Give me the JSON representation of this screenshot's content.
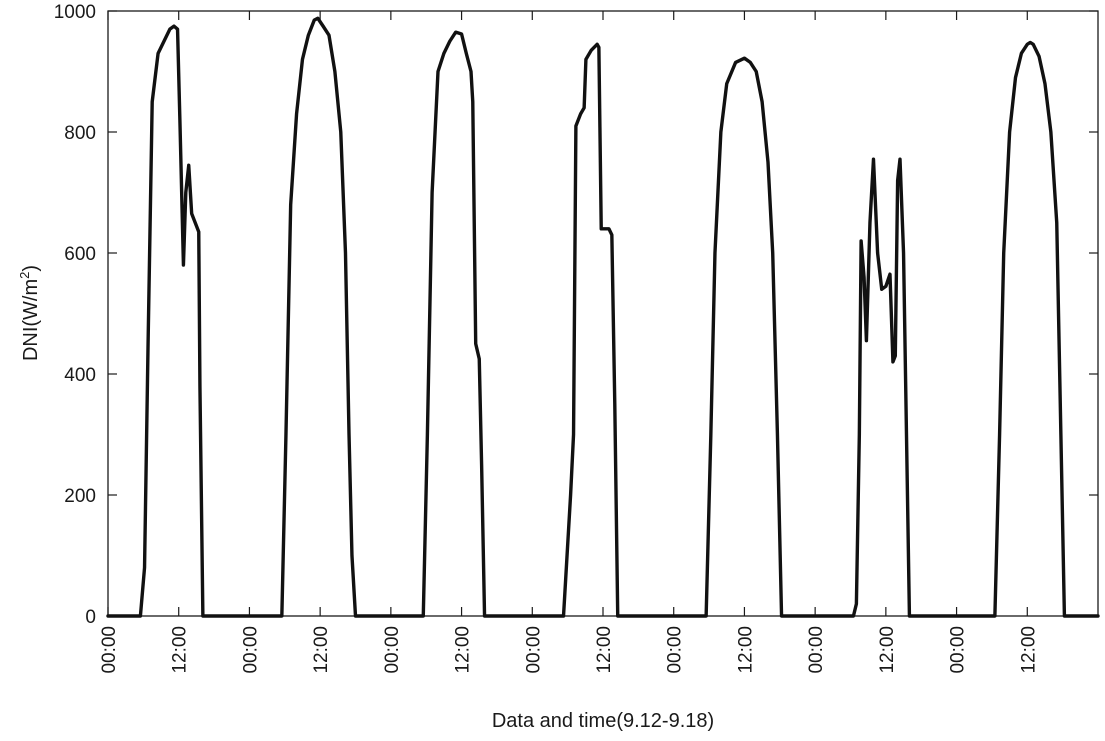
{
  "chart_data": {
    "type": "line",
    "xlabel": "Data and time(9.12-9.18)",
    "ylabel": "DNI(W/m",
    "ylabel_sup": "2",
    "ylabel_close": ")",
    "ylim": [
      0,
      1000
    ],
    "y_ticks": [
      0,
      200,
      400,
      600,
      800,
      1000
    ],
    "xlim_hours": [
      0,
      168
    ],
    "x_ticks": [
      {
        "hour": 0,
        "label": "00:00"
      },
      {
        "hour": 12,
        "label": "12:00"
      },
      {
        "hour": 24,
        "label": "00:00"
      },
      {
        "hour": 36,
        "label": "12:00"
      },
      {
        "hour": 48,
        "label": "00:00"
      },
      {
        "hour": 60,
        "label": "12:00"
      },
      {
        "hour": 72,
        "label": "00:00"
      },
      {
        "hour": 84,
        "label": "12:00"
      },
      {
        "hour": 96,
        "label": "00:00"
      },
      {
        "hour": 108,
        "label": "12:00"
      },
      {
        "hour": 120,
        "label": "00:00"
      },
      {
        "hour": 132,
        "label": "12:00"
      },
      {
        "hour": 144,
        "label": "00:00"
      },
      {
        "hour": 156,
        "label": "12:00"
      }
    ],
    "grid": false,
    "line_color": "#111111",
    "series": [
      {
        "points": [
          [
            0,
            0
          ],
          [
            4.5,
            0
          ],
          [
            5.5,
            0
          ],
          [
            6.2,
            80
          ],
          [
            6.8,
            450
          ],
          [
            7.5,
            850
          ],
          [
            8.5,
            930
          ],
          [
            9.5,
            950
          ],
          [
            10.5,
            970
          ],
          [
            11.2,
            975
          ],
          [
            11.8,
            970
          ],
          [
            12.2,
            820
          ],
          [
            12.8,
            580
          ],
          [
            13.2,
            700
          ],
          [
            13.7,
            745
          ],
          [
            14.2,
            665
          ],
          [
            15,
            645
          ],
          [
            15.4,
            635
          ],
          [
            15.6,
            380
          ],
          [
            16.1,
            0
          ],
          [
            29.5,
            0
          ],
          [
            30.2,
            300
          ],
          [
            31,
            680
          ],
          [
            32,
            830
          ],
          [
            33,
            920
          ],
          [
            34,
            960
          ],
          [
            35,
            985
          ],
          [
            35.6,
            988
          ],
          [
            36.5,
            975
          ],
          [
            37.5,
            960
          ],
          [
            38.5,
            900
          ],
          [
            39.5,
            800
          ],
          [
            40.3,
            600
          ],
          [
            40.9,
            300
          ],
          [
            41.4,
            100
          ],
          [
            42,
            0
          ],
          [
            53.5,
            0
          ],
          [
            54.2,
            300
          ],
          [
            55,
            700
          ],
          [
            56,
            900
          ],
          [
            57,
            930
          ],
          [
            58,
            950
          ],
          [
            59,
            965
          ],
          [
            60,
            962
          ],
          [
            60.8,
            930
          ],
          [
            61.6,
            900
          ],
          [
            61.9,
            850
          ],
          [
            62.4,
            450
          ],
          [
            63,
            425
          ],
          [
            63.4,
            250
          ],
          [
            63.9,
            0
          ],
          [
            77.3,
            0
          ],
          [
            77.9,
            100
          ],
          [
            78.5,
            200
          ],
          [
            79,
            300
          ],
          [
            79.4,
            810
          ],
          [
            80.2,
            830
          ],
          [
            80.8,
            840
          ],
          [
            81.1,
            920
          ],
          [
            82,
            935
          ],
          [
            83,
            945
          ],
          [
            83.3,
            940
          ],
          [
            83.7,
            640
          ],
          [
            85,
            640
          ],
          [
            85.5,
            630
          ],
          [
            86,
            350
          ],
          [
            86.5,
            0
          ],
          [
            101.5,
            0
          ],
          [
            102.3,
            300
          ],
          [
            103,
            600
          ],
          [
            104,
            800
          ],
          [
            105,
            880
          ],
          [
            106.5,
            915
          ],
          [
            108,
            922
          ],
          [
            109,
            915
          ],
          [
            110,
            900
          ],
          [
            111,
            850
          ],
          [
            112,
            750
          ],
          [
            112.8,
            600
          ],
          [
            113.6,
            300
          ],
          [
            114.3,
            0
          ],
          [
            126.5,
            0
          ],
          [
            127,
            20
          ],
          [
            127.5,
            300
          ],
          [
            127.8,
            620
          ],
          [
            128.3,
            560
          ],
          [
            128.7,
            455
          ],
          [
            129.3,
            650
          ],
          [
            129.9,
            755
          ],
          [
            130.6,
            600
          ],
          [
            131.3,
            540
          ],
          [
            132,
            545
          ],
          [
            132.7,
            565
          ],
          [
            133.2,
            420
          ],
          [
            133.6,
            430
          ],
          [
            134,
            720
          ],
          [
            134.4,
            755
          ],
          [
            135,
            600
          ],
          [
            135.5,
            300
          ],
          [
            136,
            0
          ],
          [
            150.5,
            0
          ],
          [
            151.3,
            300
          ],
          [
            152,
            600
          ],
          [
            153,
            800
          ],
          [
            154,
            890
          ],
          [
            155,
            930
          ],
          [
            156,
            945
          ],
          [
            156.5,
            948
          ],
          [
            157,
            945
          ],
          [
            158,
            925
          ],
          [
            159,
            880
          ],
          [
            160,
            800
          ],
          [
            161,
            650
          ],
          [
            161.7,
            300
          ],
          [
            162.3,
            0
          ],
          [
            168,
            0
          ]
        ]
      }
    ]
  }
}
